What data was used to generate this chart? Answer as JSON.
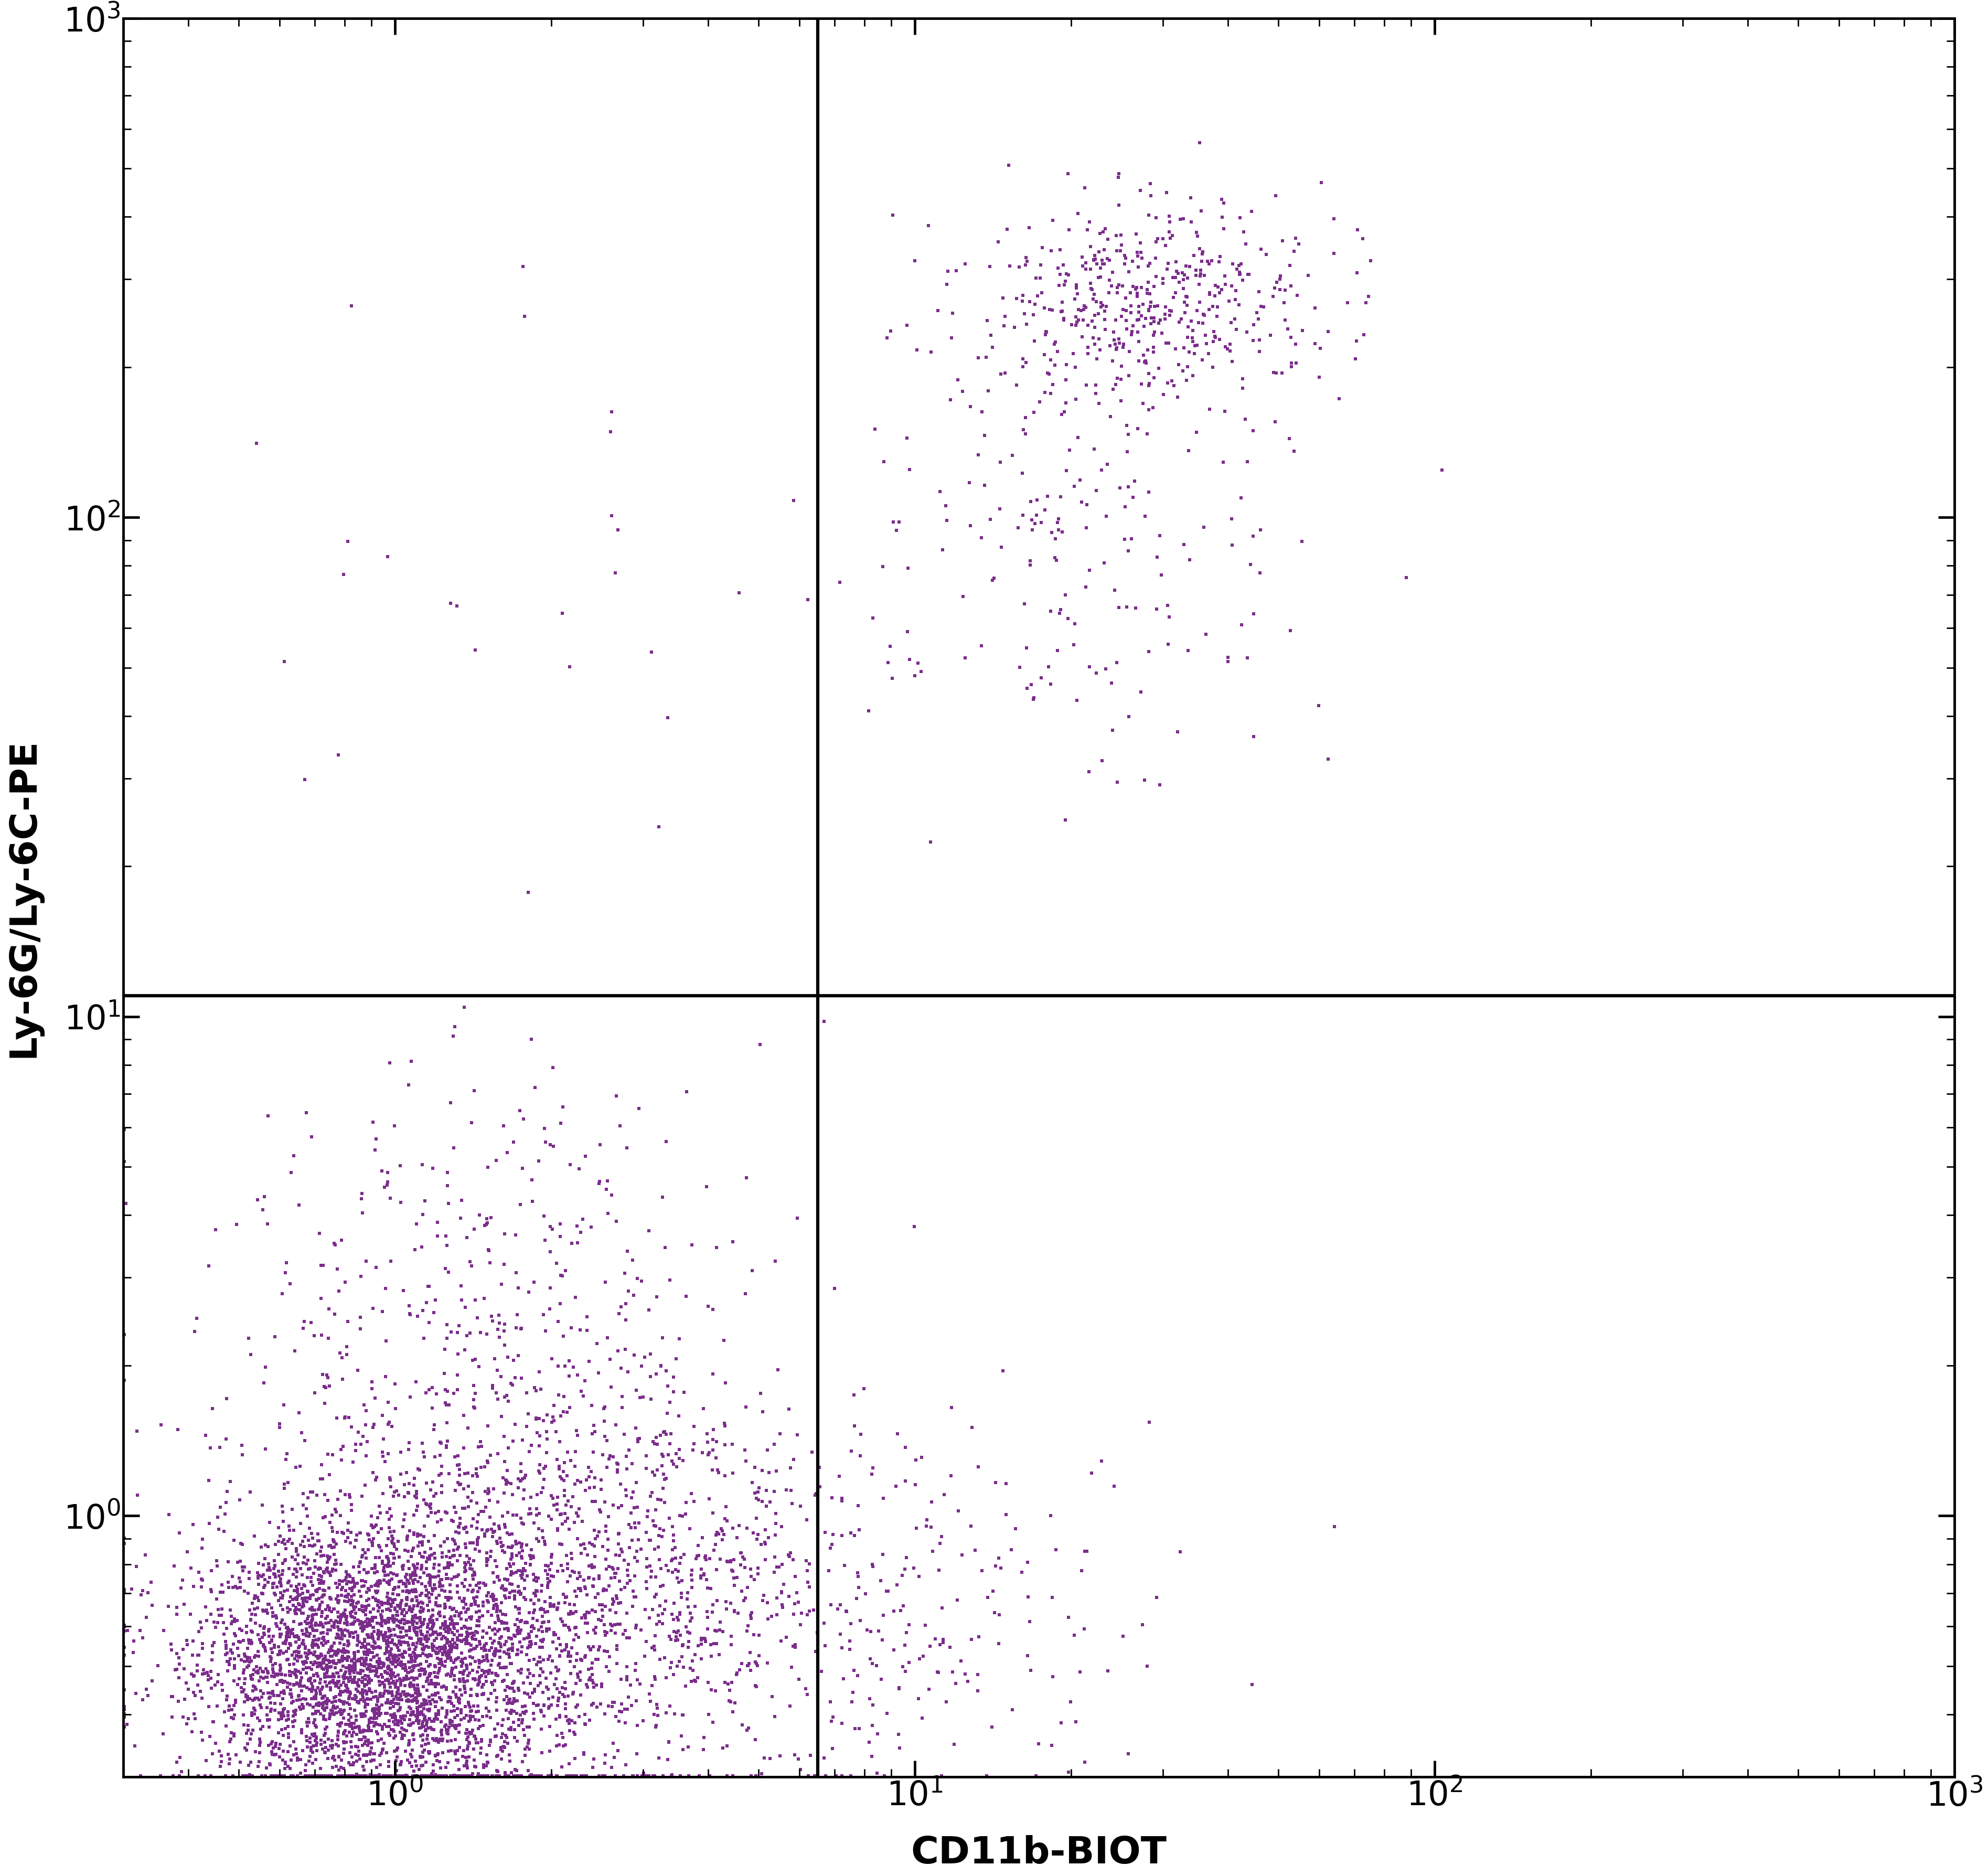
{
  "xlabel": "CD11b-BIOT",
  "ylabel": "Ly-6G/Ly-6C-PE",
  "xlim": [
    0.3,
    1000
  ],
  "ylim": [
    0.3,
    1000
  ],
  "dot_color": "#7B2D8B",
  "dot_size": 18,
  "gate_x": 6.5,
  "gate_y": 11.0,
  "background_color": "#ffffff",
  "axis_color": "#000000",
  "xlabel_fontsize": 52,
  "ylabel_fontsize": 52,
  "tick_fontsize": 46,
  "seed": 42
}
